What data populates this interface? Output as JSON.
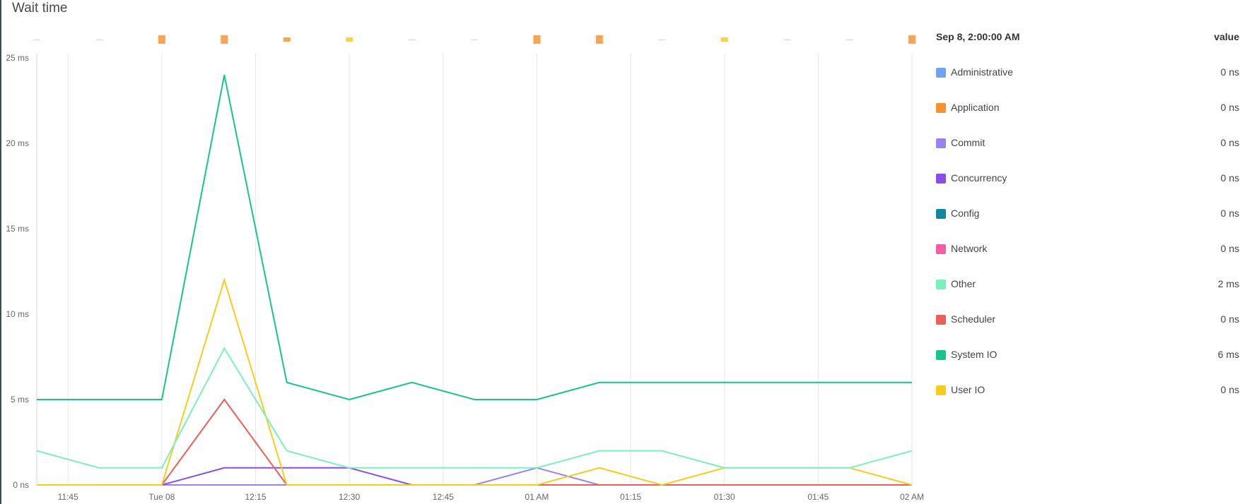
{
  "title": "Wait time",
  "legend": {
    "timestamp": "Sep 8, 2:00:00 AM",
    "value_header": "value",
    "items": [
      {
        "name": "Administrative",
        "value": "0 ns",
        "color": "#6ea2f2"
      },
      {
        "name": "Application",
        "value": "0 ns",
        "color": "#f59331"
      },
      {
        "name": "Commit",
        "value": "0 ns",
        "color": "#9b82ec"
      },
      {
        "name": "Concurrency",
        "value": "0 ns",
        "color": "#8b4ce8"
      },
      {
        "name": "Config",
        "value": "0 ns",
        "color": "#11889f"
      },
      {
        "name": "Network",
        "value": "0 ns",
        "color": "#f25fa2"
      },
      {
        "name": "Other",
        "value": "2 ms",
        "color": "#7bf0bf"
      },
      {
        "name": "Scheduler",
        "value": "0 ns",
        "color": "#ec5f59"
      },
      {
        "name": "System IO",
        "value": "6 ms",
        "color": "#17c48c"
      },
      {
        "name": "User IO",
        "value": "0 ns",
        "color": "#f8cc1b"
      }
    ]
  },
  "events": [
    {
      "level": "none"
    },
    {
      "level": "none"
    },
    {
      "level": "high",
      "color": "#f7a552"
    },
    {
      "level": "high",
      "color": "#f7a552"
    },
    {
      "level": "medium",
      "color": "#f7a552"
    },
    {
      "level": "low",
      "color": "#f8d34a"
    },
    {
      "level": "none"
    },
    {
      "level": "none"
    },
    {
      "level": "high",
      "color": "#f7a552"
    },
    {
      "level": "high",
      "color": "#f7a552"
    },
    {
      "level": "none"
    },
    {
      "level": "low",
      "color": "#f8d34a"
    },
    {
      "level": "none"
    },
    {
      "level": "none"
    },
    {
      "level": "high",
      "color": "#f7a552"
    }
  ],
  "chart_data": {
    "type": "line",
    "title": "Wait time",
    "x_ticks": [
      "11:45",
      "Tue 08",
      "12:15",
      "12:30",
      "12:45",
      "01 AM",
      "01:15",
      "01:30",
      "01:45",
      "02 AM"
    ],
    "y_ticks": [
      "0 ns",
      "5 ms",
      "10 ms",
      "15 ms",
      "20 ms",
      "25 ms"
    ],
    "ylim": [
      0,
      25
    ],
    "y_unit": "ms",
    "x": [
      "23:40",
      "23:50",
      "00:00",
      "00:10",
      "00:20",
      "00:30",
      "00:40",
      "00:50",
      "01:00",
      "01:10",
      "01:20",
      "01:30",
      "01:40",
      "01:50",
      "02:00"
    ],
    "grid": true,
    "series": [
      {
        "name": "System IO",
        "color": "#17c48c",
        "values": [
          5,
          5,
          5,
          24,
          6,
          5,
          6,
          5,
          5,
          6,
          6,
          6,
          6,
          6,
          6
        ]
      },
      {
        "name": "Other",
        "color": "#7bf0bf",
        "values": [
          2,
          1,
          1,
          8,
          2,
          1,
          1,
          1,
          1,
          2,
          2,
          1,
          1,
          1,
          2
        ]
      },
      {
        "name": "User IO",
        "color": "#f8cc1b",
        "values": [
          0,
          0,
          0,
          12,
          0,
          0,
          0,
          0,
          0,
          1,
          0,
          1,
          1,
          1,
          0
        ]
      },
      {
        "name": "Scheduler",
        "color": "#ec5f59",
        "values": [
          0,
          0,
          0,
          5,
          0,
          0,
          0,
          0,
          0,
          0,
          0,
          0,
          0,
          0,
          0
        ]
      },
      {
        "name": "Concurrency",
        "color": "#8b4ce8",
        "values": [
          0,
          0,
          0,
          1,
          1,
          1,
          0,
          0,
          0,
          0,
          0,
          0,
          0,
          0,
          0
        ]
      },
      {
        "name": "Commit",
        "color": "#9b82ec",
        "values": [
          0,
          0,
          0,
          0,
          0,
          0,
          0,
          0,
          1,
          0,
          0,
          0,
          0,
          0,
          0
        ]
      },
      {
        "name": "Network",
        "color": "#f25fa2",
        "values": [
          0,
          0,
          0,
          0,
          0,
          0,
          0,
          0,
          0,
          0,
          0,
          0,
          0,
          0,
          0
        ]
      }
    ]
  }
}
